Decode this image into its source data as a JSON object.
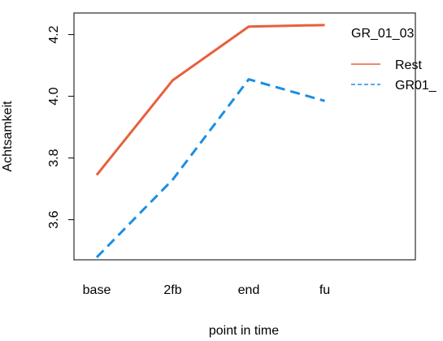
{
  "chart_data": {
    "type": "line",
    "xlabel": "point in time",
    "ylabel": "Achtsamkeit",
    "categories": [
      "base",
      "2fb",
      "end",
      "fu"
    ],
    "yticks": [
      3.6,
      3.8,
      4.0,
      4.2
    ],
    "ytick_labels": [
      "3.6",
      "3.8",
      "4.0",
      "4.2"
    ],
    "ylim": [
      3.47,
      4.27
    ],
    "grid": false,
    "legend": {
      "title": "GR_01_03",
      "placement": "top-right",
      "entries": [
        "Rest",
        "GR01_"
      ]
    },
    "series": [
      {
        "name": "Rest",
        "values": [
          3.745,
          4.052,
          4.226,
          4.231
        ],
        "color": "#e8603c",
        "dash": "solid"
      },
      {
        "name": "GR01_",
        "values": [
          3.478,
          3.73,
          4.055,
          3.985
        ],
        "color": "#1a8fe3",
        "dash": "dashed"
      }
    ]
  }
}
